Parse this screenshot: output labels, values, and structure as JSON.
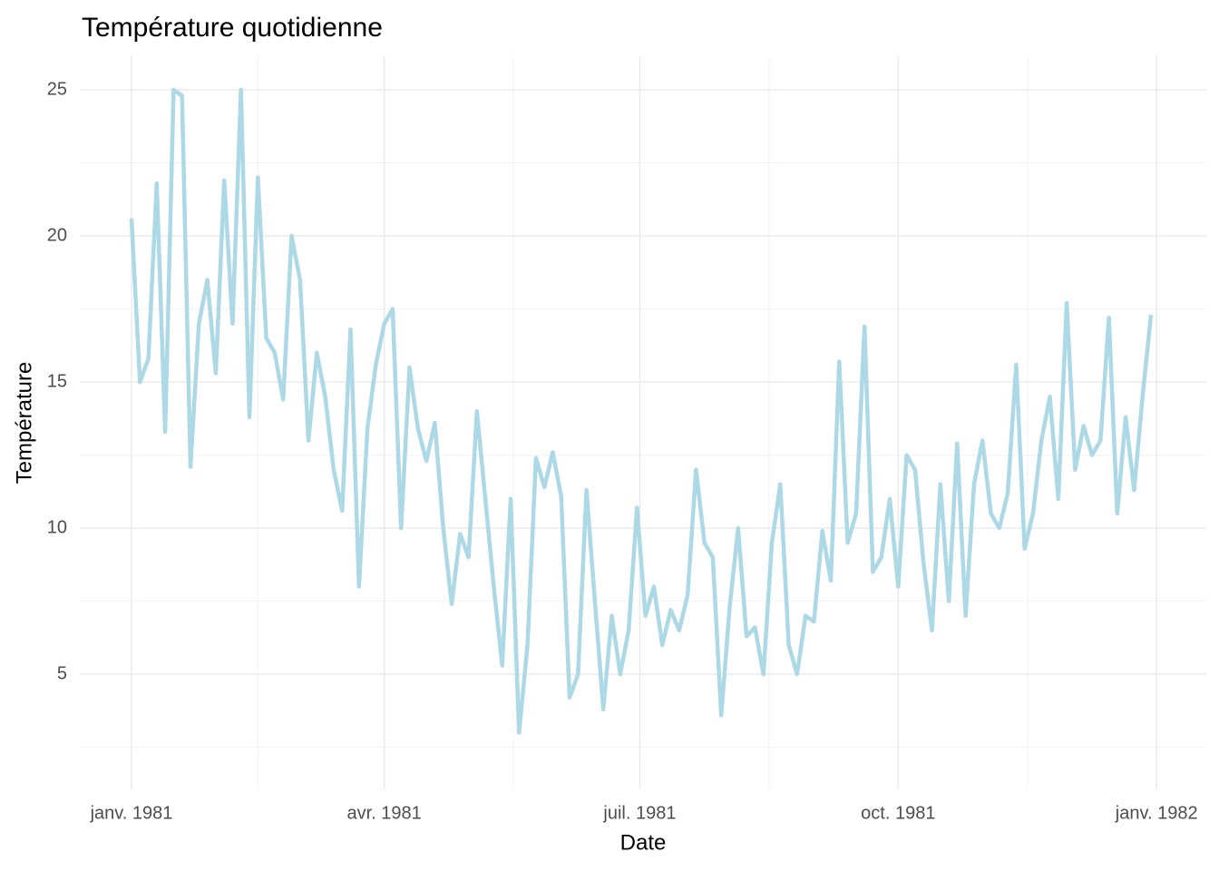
{
  "chart_data": {
    "type": "line",
    "title": "Température quotidienne",
    "x_label": "Date",
    "y_label": "Température",
    "x": [
      0,
      3,
      6,
      9,
      12,
      15,
      18,
      21,
      24,
      27,
      30,
      33,
      36,
      39,
      42,
      45,
      48,
      51,
      54,
      57,
      60,
      63,
      66,
      69,
      72,
      75,
      78,
      81,
      84,
      87,
      90,
      93,
      96,
      99,
      102,
      105,
      108,
      111,
      114,
      117,
      120,
      123,
      126,
      129,
      132,
      135,
      138,
      141,
      144,
      147,
      150,
      153,
      156,
      159,
      162,
      165,
      168,
      171,
      174,
      177,
      180,
      183,
      186,
      189,
      192,
      195,
      198,
      201,
      204,
      207,
      210,
      213,
      216,
      219,
      222,
      225,
      228,
      231,
      234,
      237,
      240,
      243,
      246,
      249,
      252,
      255,
      258,
      261,
      264,
      267,
      270,
      273,
      276,
      279,
      282,
      285,
      288,
      291,
      294,
      297,
      300,
      303,
      306,
      309,
      312,
      315,
      318,
      321,
      324,
      327,
      330,
      333,
      336,
      339,
      342,
      345,
      348,
      351,
      354,
      357,
      360,
      363
    ],
    "series": [
      {
        "name": "Température",
        "color": "#add8e6",
        "values": [
          20.6,
          15,
          15.8,
          21.8,
          13.3,
          25,
          24.8,
          12.1,
          17,
          18.5,
          15.3,
          21.9,
          17,
          25,
          13.8,
          22,
          16.5,
          16,
          14.4,
          20,
          18.5,
          13,
          16,
          14.5,
          12,
          10.6,
          16.8,
          8,
          13.4,
          15.6,
          17,
          17.5,
          10,
          15.5,
          13.4,
          12.3,
          13.6,
          10,
          7.4,
          9.8,
          9,
          14,
          11,
          8,
          5.3,
          11,
          3,
          6,
          12.4,
          11.4,
          12.6,
          11.1,
          4.2,
          5,
          11.3,
          7.5,
          3.8,
          7,
          5,
          6.5,
          10.7,
          7,
          8,
          6,
          7.2,
          6.5,
          7.7,
          12,
          9.5,
          9,
          3.6,
          7.3,
          10,
          6.3,
          6.6,
          5,
          9.5,
          11.5,
          6,
          5,
          7,
          6.8,
          9.9,
          8.2,
          15.7,
          9.5,
          10.5,
          16.9,
          8.5,
          9,
          11,
          8,
          12.5,
          12,
          8.8,
          6.5,
          11.5,
          7.5,
          12.9,
          7,
          11.5,
          13,
          10.5,
          10,
          11.2,
          15.6,
          9.3,
          10.5,
          13,
          14.5,
          11,
          17.7,
          12,
          13.5,
          12.5,
          13,
          17.2,
          10.5,
          13.8,
          11.3,
          14.5,
          17.3
        ]
      }
    ],
    "xlim": [
      -18.4,
      382.7
    ],
    "xticks": [
      {
        "value": 0,
        "label": "janv. 1981"
      },
      {
        "value": 90,
        "label": "avr. 1981"
      },
      {
        "value": 181,
        "label": "juil. 1981"
      },
      {
        "value": 273,
        "label": "oct. 1981"
      },
      {
        "value": 365,
        "label": "janv. 1982"
      }
    ],
    "minor_xticks": [
      45,
      136,
      227,
      319
    ],
    "ylim": [
      1.06,
      26.15
    ],
    "yticks": [
      5,
      10,
      15,
      20,
      25
    ],
    "minor_yticks": [
      2.5,
      7.5,
      12.5,
      17.5,
      22.5
    ],
    "grid": true
  }
}
